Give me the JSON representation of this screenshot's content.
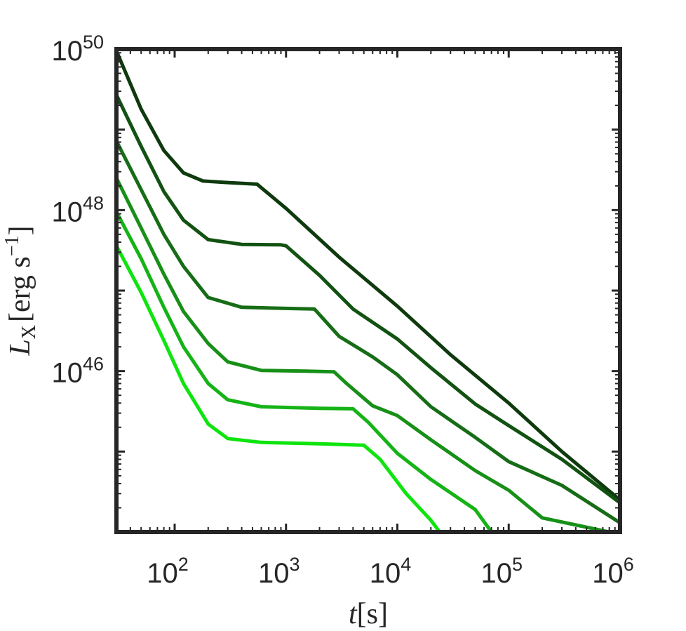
{
  "chart_data": {
    "type": "line",
    "title": "",
    "xlabel": {
      "var": "t",
      "unit": "[s]"
    },
    "ylabel": {
      "var": "L",
      "sub": "X",
      "unit": "[erg s",
      "unit_exp": "−1",
      "unit_close": "]"
    },
    "xscale": "log",
    "yscale": "log",
    "xlim": [
      30,
      1000000
    ],
    "ylim": [
      1e+44,
      1e+50
    ],
    "grid": false,
    "legend": "none",
    "xticks": [
      {
        "value": 100,
        "base": "10",
        "exp": "2"
      },
      {
        "value": 1000,
        "base": "10",
        "exp": "3"
      },
      {
        "value": 10000,
        "base": "10",
        "exp": "4"
      },
      {
        "value": 100000,
        "base": "10",
        "exp": "5"
      },
      {
        "value": 1000000,
        "base": "10",
        "exp": "6"
      }
    ],
    "yticks": [
      {
        "value": 1e+46,
        "base": "10",
        "exp": "46"
      },
      {
        "value": 1e+48,
        "base": "10",
        "exp": "48"
      },
      {
        "value": 1e+50,
        "base": "10",
        "exp": "50"
      }
    ],
    "series": [
      {
        "color": "#0e3a0e",
        "points": [
          [
            30,
            9.5e+49
          ],
          [
            50,
            1.8e+49
          ],
          [
            80,
            5.5e+48
          ],
          [
            120,
            2.9e+48
          ],
          [
            180,
            2.3e+48
          ],
          [
            300,
            2.2e+48
          ],
          [
            550,
            2.1e+48
          ],
          [
            1000,
            1.05e+48
          ],
          [
            3000,
            2.6e+47
          ],
          [
            10000,
            6.4e+46
          ],
          [
            30000,
            1.6e+46
          ],
          [
            100000,
            4e+45
          ],
          [
            300000,
            1e+45
          ],
          [
            1000000,
            2.5e+44
          ]
        ]
      },
      {
        "color": "#125212",
        "points": [
          [
            30,
            2.7e+49
          ],
          [
            50,
            6.2e+48
          ],
          [
            80,
            1.7e+48
          ],
          [
            120,
            7.5e+47
          ],
          [
            200,
            4.3e+47
          ],
          [
            400,
            3.75e+47
          ],
          [
            900,
            3.7e+47
          ],
          [
            1000,
            3.6e+47
          ],
          [
            2000,
            1.55e+47
          ],
          [
            4000,
            5.9e+46
          ],
          [
            10000,
            2.5e+46
          ],
          [
            20000,
            1.1e+46
          ],
          [
            50000,
            3.9e+45
          ],
          [
            100000,
            2.1e+45
          ],
          [
            300000,
            8e+44
          ],
          [
            1000000,
            2.3e+44
          ]
        ]
      },
      {
        "color": "#166d16",
        "points": [
          [
            30,
            7.2e+48
          ],
          [
            50,
            1.8e+48
          ],
          [
            80,
            5e+47
          ],
          [
            120,
            2e+47
          ],
          [
            200,
            8.2e+46
          ],
          [
            400,
            6.2e+46
          ],
          [
            1000,
            6e+46
          ],
          [
            1800,
            5.9e+46
          ],
          [
            3000,
            2.7e+46
          ],
          [
            6000,
            1.5e+46
          ],
          [
            10000,
            9e+45
          ],
          [
            20000,
            3.6e+45
          ],
          [
            50000,
            1.5e+45
          ],
          [
            100000,
            7.5e+44
          ],
          [
            300000,
            3.8e+44
          ],
          [
            1000000,
            1.3e+44
          ]
        ]
      },
      {
        "color": "#179017",
        "points": [
          [
            30,
            2.5e+48
          ],
          [
            50,
            6e+47
          ],
          [
            80,
            1.6e+47
          ],
          [
            120,
            5.5e+46
          ],
          [
            200,
            2.2e+46
          ],
          [
            300,
            1.3e+46
          ],
          [
            600,
            1.02e+46
          ],
          [
            1500,
            1e+46
          ],
          [
            2700,
            9.8e+45
          ],
          [
            3500,
            7e+45
          ],
          [
            6000,
            3.7e+45
          ],
          [
            10000,
            2.8e+45
          ],
          [
            20000,
            1.4e+45
          ],
          [
            50000,
            5.8e+44
          ],
          [
            100000,
            3.3e+44
          ],
          [
            200000,
            1.5e+44
          ],
          [
            800000,
            1e+44
          ]
        ]
      },
      {
        "color": "#16b316",
        "points": [
          [
            30,
            9.5e+47
          ],
          [
            50,
            2.5e+47
          ],
          [
            80,
            6.2e+46
          ],
          [
            120,
            2e+46
          ],
          [
            200,
            7e+45
          ],
          [
            300,
            4.4e+45
          ],
          [
            600,
            3.6e+45
          ],
          [
            2000,
            3.45e+45
          ],
          [
            4000,
            3.4e+45
          ],
          [
            5500,
            2.3e+45
          ],
          [
            10000,
            9.5e+44
          ],
          [
            20000,
            4.5e+44
          ],
          [
            50000,
            1.9e+44
          ],
          [
            70000,
            1e+44
          ]
        ]
      },
      {
        "color": "#0fe40f",
        "points": [
          [
            30,
            3.6e+47
          ],
          [
            50,
            9.5e+46
          ],
          [
            80,
            2.4e+46
          ],
          [
            120,
            7e+45
          ],
          [
            200,
            2.2e+45
          ],
          [
            300,
            1.45e+45
          ],
          [
            600,
            1.3e+45
          ],
          [
            2000,
            1.25e+45
          ],
          [
            5000,
            1.2e+45
          ],
          [
            7000,
            8e+44
          ],
          [
            12000,
            3e+44
          ],
          [
            20000,
            1.4e+44
          ],
          [
            24000,
            1e+44
          ]
        ]
      }
    ]
  }
}
